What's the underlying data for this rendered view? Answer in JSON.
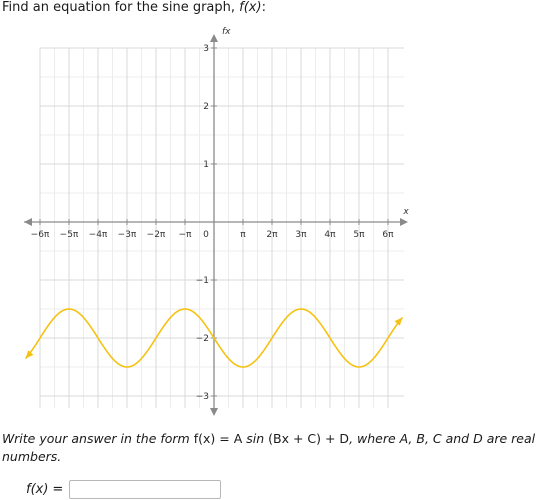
{
  "prompt": {
    "text_prefix": "Find an equation for the sine graph, ",
    "function_name": "f(x)",
    "text_suffix": ":"
  },
  "chart_data": {
    "type": "line",
    "x_axis_label": "x",
    "y_axis_label": "fx",
    "x_tick_labels": [
      "−6π",
      "−5π",
      "−4π",
      "−3π",
      "−2π",
      "−π",
      "0",
      "π",
      "2π",
      "3π",
      "4π",
      "5π",
      "6π"
    ],
    "y_tick_labels": [
      "−3",
      "−2",
      "−1",
      "1",
      "2",
      "3"
    ],
    "xlim_pi_units": [
      -6,
      6
    ],
    "ylim": [
      -3,
      3
    ],
    "grid": true,
    "series": [
      {
        "color": "#f5c211",
        "equation_hint": "y = 0.5 sin(x/2 + π) − 2",
        "x": [
          -6.5,
          -6,
          -5.5,
          -5,
          -4.5,
          -4,
          -3.5,
          -3,
          -2.5,
          -2,
          -1.5,
          -1,
          -0.5,
          0,
          0.5,
          1,
          1.5,
          2,
          2.5,
          3,
          3.5,
          4,
          4.5,
          5,
          5.5,
          6,
          6.5
        ],
        "x_units": "π",
        "y": [
          -2.35,
          -2.0,
          -1.65,
          -1.5,
          -1.65,
          -2.0,
          -2.35,
          -2.5,
          -2.35,
          -2.0,
          -1.65,
          -1.5,
          -1.65,
          -2.0,
          -2.35,
          -2.5,
          -2.35,
          -2.0,
          -1.65,
          -1.5,
          -1.65,
          -2.0,
          -2.35,
          -2.5,
          -2.35,
          -2.0,
          -1.65
        ]
      }
    ]
  },
  "instructions": {
    "prefix": "Write your answer in the form ",
    "form": "f(x) = A",
    "sin": "sin",
    "middle": " (Bx + C) + D",
    "suffix": ", where A, B, C and D are real numbers."
  },
  "answer": {
    "label": "f(x)",
    "equals": "=",
    "value": "",
    "placeholder": ""
  }
}
